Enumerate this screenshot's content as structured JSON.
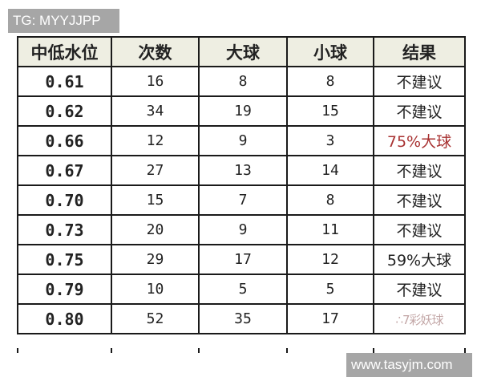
{
  "watermark_top": "TG: MYYJJPP",
  "watermark_bottom": "www.tasyjm.com",
  "colors": {
    "header_bg": "#eeeee2",
    "highlight_red": "#a83232",
    "border": "#1a1a1a"
  },
  "table": {
    "headers": [
      "中低水位",
      "次数",
      "大球",
      "小球",
      "结果"
    ],
    "rows": [
      {
        "level": "0.61",
        "count": "16",
        "over": "8",
        "under": "8",
        "result": "不建议"
      },
      {
        "level": "0.62",
        "count": "34",
        "over": "19",
        "under": "15",
        "result": "不建议"
      },
      {
        "level": "0.66",
        "count": "12",
        "over": "9",
        "under": "3",
        "result": "75%大球",
        "highlight": true
      },
      {
        "level": "0.67",
        "count": "27",
        "over": "13",
        "under": "14",
        "result": "不建议"
      },
      {
        "level": "0.70",
        "count": "15",
        "over": "7",
        "under": "8",
        "result": "不建议"
      },
      {
        "level": "0.73",
        "count": "20",
        "over": "9",
        "under": "11",
        "result": "不建议"
      },
      {
        "level": "0.75",
        "count": "29",
        "over": "17",
        "under": "12",
        "result": "59%大球"
      },
      {
        "level": "0.79",
        "count": "10",
        "over": "5",
        "under": "5",
        "result": "不建议"
      },
      {
        "level": "0.80",
        "count": "52",
        "over": "35",
        "under": "17",
        "result": ""
      }
    ]
  }
}
